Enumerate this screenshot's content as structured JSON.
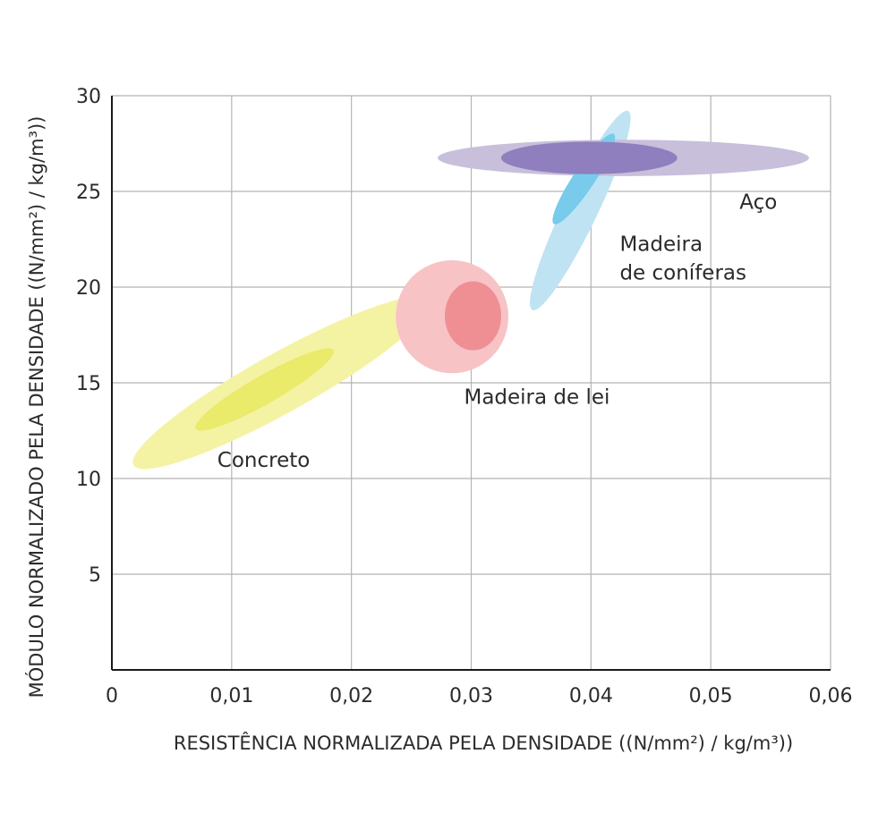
{
  "chart_data": {
    "type": "scatter",
    "title": "",
    "xlabel": "RESISTÊNCIA NORMALIZADA PELA DENSIDADE ((N/mm²) / kg/m³))",
    "ylabel": "MÓDULO NORMALIZADO PELA DENSIDADE ((N/mm²) / kg/m³))",
    "xlim": [
      0,
      0.06
    ],
    "ylim": [
      0,
      30
    ],
    "x_ticks": [
      {
        "value": 0,
        "label": "0"
      },
      {
        "value": 0.01,
        "label": "0,01"
      },
      {
        "value": 0.02,
        "label": "0,02"
      },
      {
        "value": 0.03,
        "label": "0,03"
      },
      {
        "value": 0.04,
        "label": "0,04"
      },
      {
        "value": 0.05,
        "label": "0,05"
      },
      {
        "value": 0.06,
        "label": "0,06"
      }
    ],
    "y_ticks": [
      {
        "value": 5,
        "label": "5"
      },
      {
        "value": 10,
        "label": "10"
      },
      {
        "value": 15,
        "label": "15"
      },
      {
        "value": 20,
        "label": "20"
      },
      {
        "value": 25,
        "label": "25"
      },
      {
        "value": 30,
        "label": "30"
      }
    ],
    "grid": true,
    "series": [
      {
        "name": "Concreto",
        "label_lines": [
          "Concreto"
        ],
        "label_at": {
          "x": 0.0088,
          "y": 10.6
        },
        "outer": {
          "x_min": 0.0018,
          "x_max": 0.0265,
          "y_min": 10.7,
          "y_max": 19.3,
          "color": "#f4f3a4"
        },
        "inner": {
          "x_min": 0.007,
          "x_max": 0.0185,
          "y_min": 12.6,
          "y_max": 16.7,
          "color": "#eaea6b"
        }
      },
      {
        "name": "Madeira de lei",
        "label_lines": [
          "Madeira de lei"
        ],
        "label_at": {
          "x": 0.0294,
          "y": 13.9
        },
        "outer": {
          "x_min": 0.0237,
          "x_max": 0.0331,
          "y_min": 15.5,
          "y_max": 21.4,
          "color": "#f7c3c5"
        },
        "inner": {
          "x_min": 0.0278,
          "x_max": 0.0325,
          "y_min": 16.7,
          "y_max": 20.3,
          "color": "#ef8e93"
        }
      },
      {
        "name": "Madeira de coníferas",
        "label_lines": [
          "Madeira",
          "de coníferas"
        ],
        "label_at": {
          "x": 0.0424,
          "y": 21.9
        },
        "outer": {
          "x_min": 0.0351,
          "x_max": 0.0431,
          "y_min": 18.8,
          "y_max": 29.2,
          "color": "#bfe3f3"
        },
        "inner": {
          "x_min": 0.0369,
          "x_max": 0.0419,
          "y_min": 23.3,
          "y_max": 28.0,
          "color": "#78cbea"
        }
      },
      {
        "name": "Aço",
        "label_lines": [
          "Aço"
        ],
        "label_at": {
          "x": 0.0524,
          "y": 24.1
        },
        "outer": {
          "x_min": 0.0272,
          "x_max": 0.0582,
          "y_min": 25.8,
          "y_max": 27.7,
          "color": "#c8bfdb"
        },
        "inner": {
          "x_min": 0.0325,
          "x_max": 0.0472,
          "y_min": 25.9,
          "y_max": 27.6,
          "color": "#8f7fbf"
        }
      }
    ]
  }
}
